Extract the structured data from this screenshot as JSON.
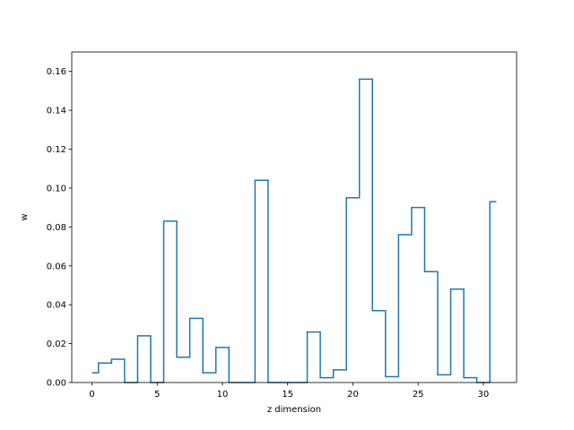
{
  "chart_data": {
    "type": "line",
    "drawstyle": "steps-mid",
    "xlabel": "z dimension",
    "ylabel": "w",
    "xlim": [
      -1.55,
      32.55
    ],
    "ylim": [
      0.0,
      0.17
    ],
    "x_ticks": [
      0,
      5,
      10,
      15,
      20,
      25,
      30
    ],
    "y_ticks": [
      0.0,
      0.02,
      0.04,
      0.06,
      0.08,
      0.1,
      0.12,
      0.14,
      0.16
    ],
    "x_tick_labels": [
      "0",
      "5",
      "10",
      "15",
      "20",
      "25",
      "30"
    ],
    "y_tick_labels": [
      "0.00",
      "0.02",
      "0.04",
      "0.06",
      "0.08",
      "0.10",
      "0.12",
      "0.14",
      "0.16"
    ],
    "grid": false,
    "line_color": "#1f77b4",
    "series": [
      {
        "x": [
          0,
          1,
          2,
          3,
          4,
          5,
          6,
          7,
          8,
          9,
          10,
          11,
          12,
          13,
          14,
          15,
          16,
          17,
          18,
          19,
          20,
          21,
          22,
          23,
          24,
          25,
          26,
          27,
          28,
          29,
          30,
          31
        ],
        "values": [
          0.005,
          0.01,
          0.012,
          0.0,
          0.024,
          0.0,
          0.083,
          0.013,
          0.033,
          0.005,
          0.018,
          0.0,
          0.0,
          0.104,
          0.0,
          0.0,
          0.0,
          0.026,
          0.0025,
          0.0065,
          0.095,
          0.156,
          0.037,
          0.003,
          0.076,
          0.09,
          0.057,
          0.004,
          0.048,
          0.0025,
          0.0,
          0.093
        ]
      }
    ]
  }
}
